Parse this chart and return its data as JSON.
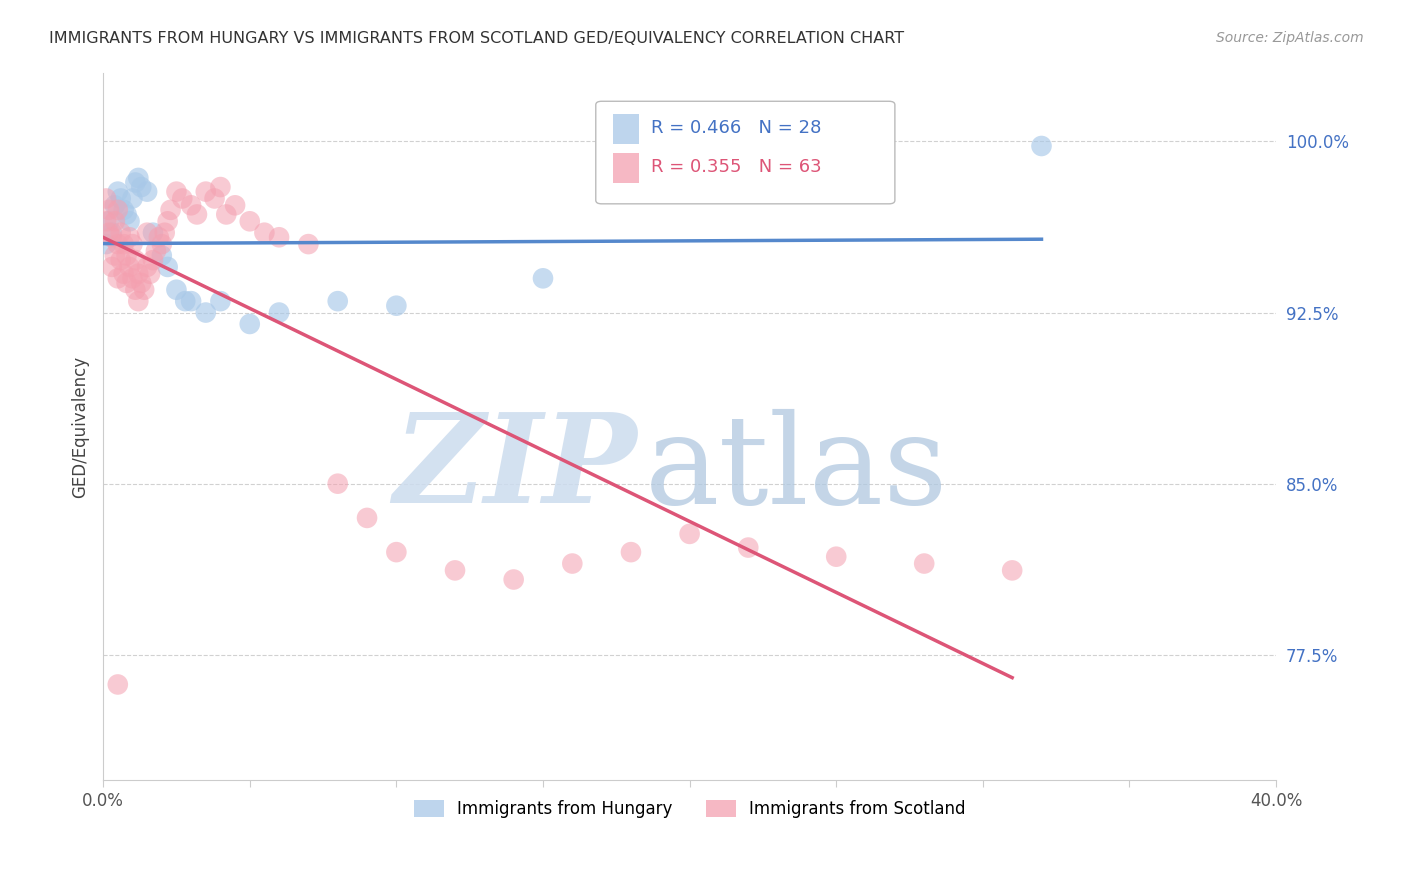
{
  "title": "IMMIGRANTS FROM HUNGARY VS IMMIGRANTS FROM SCOTLAND GED/EQUIVALENCY CORRELATION CHART",
  "source": "Source: ZipAtlas.com",
  "ylabel": "GED/Equivalency",
  "ytick_labels": [
    "100.0%",
    "92.5%",
    "85.0%",
    "77.5%"
  ],
  "ytick_values": [
    1.0,
    0.925,
    0.85,
    0.775
  ],
  "xlim": [
    0.0,
    0.4
  ],
  "ylim": [
    0.72,
    1.03
  ],
  "legend_r_hungary": "R = 0.466",
  "legend_n_hungary": "N = 28",
  "legend_r_scotland": "R = 0.355",
  "legend_n_scotland": "N = 63",
  "hungary_color": "#a8c8e8",
  "scotland_color": "#f4a0b0",
  "hungary_line_color": "#5588cc",
  "scotland_line_color": "#dd5577",
  "background_color": "#ffffff",
  "hungary_x": [
    0.001,
    0.002,
    0.003,
    0.004,
    0.005,
    0.006,
    0.007,
    0.008,
    0.009,
    0.01,
    0.011,
    0.012,
    0.013,
    0.015,
    0.017,
    0.02,
    0.022,
    0.025,
    0.028,
    0.03,
    0.035,
    0.04,
    0.05,
    0.06,
    0.08,
    0.1,
    0.15,
    0.32
  ],
  "hungary_y": [
    0.955,
    0.965,
    0.96,
    0.972,
    0.978,
    0.975,
    0.97,
    0.968,
    0.965,
    0.975,
    0.982,
    0.984,
    0.98,
    0.978,
    0.96,
    0.95,
    0.945,
    0.935,
    0.93,
    0.93,
    0.925,
    0.93,
    0.92,
    0.925,
    0.93,
    0.928,
    0.94,
    0.998
  ],
  "scotland_x": [
    0.001,
    0.001,
    0.002,
    0.002,
    0.003,
    0.003,
    0.004,
    0.004,
    0.005,
    0.005,
    0.005,
    0.006,
    0.006,
    0.007,
    0.007,
    0.008,
    0.008,
    0.009,
    0.009,
    0.01,
    0.01,
    0.011,
    0.011,
    0.012,
    0.012,
    0.013,
    0.014,
    0.015,
    0.015,
    0.016,
    0.017,
    0.018,
    0.019,
    0.02,
    0.021,
    0.022,
    0.023,
    0.025,
    0.027,
    0.03,
    0.032,
    0.035,
    0.038,
    0.04,
    0.042,
    0.045,
    0.05,
    0.055,
    0.06,
    0.07,
    0.08,
    0.09,
    0.1,
    0.12,
    0.14,
    0.16,
    0.18,
    0.2,
    0.22,
    0.25,
    0.28,
    0.31,
    0.005
  ],
  "scotland_y": [
    0.965,
    0.975,
    0.96,
    0.97,
    0.945,
    0.958,
    0.95,
    0.965,
    0.94,
    0.955,
    0.97,
    0.948,
    0.96,
    0.942,
    0.955,
    0.938,
    0.95,
    0.945,
    0.958,
    0.94,
    0.955,
    0.935,
    0.948,
    0.93,
    0.942,
    0.938,
    0.935,
    0.945,
    0.96,
    0.942,
    0.948,
    0.952,
    0.958,
    0.955,
    0.96,
    0.965,
    0.97,
    0.978,
    0.975,
    0.972,
    0.968,
    0.978,
    0.975,
    0.98,
    0.968,
    0.972,
    0.965,
    0.96,
    0.958,
    0.955,
    0.85,
    0.835,
    0.82,
    0.812,
    0.808,
    0.815,
    0.82,
    0.828,
    0.822,
    0.818,
    0.815,
    0.812,
    0.762
  ]
}
